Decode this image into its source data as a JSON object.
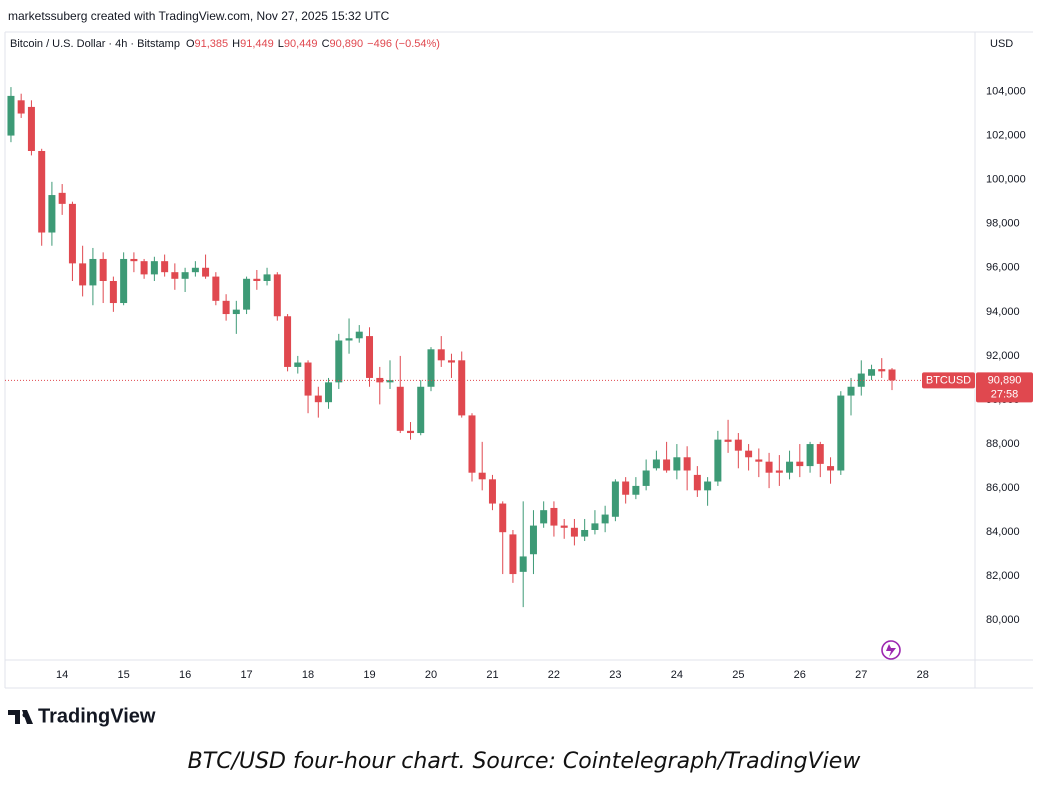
{
  "header": {
    "credit": "marketssuberg created with TradingView.com, Nov 27, 2025 15:32 UTC",
    "symbol": "Bitcoin / U.S. Dollar · 4h · Bitstamp",
    "ohlc": [
      {
        "key": "O",
        "value": "91,385"
      },
      {
        "key": "H",
        "value": "91,449"
      },
      {
        "key": "L",
        "value": "90,449"
      },
      {
        "key": "C",
        "value": "90,890"
      }
    ],
    "change": "−496 (−0.54%)"
  },
  "chart_data": {
    "type": "candlestick",
    "currency": "USD",
    "up_color": "#3d9a76",
    "down_color": "#e0484f",
    "x": [
      13.167,
      13.333,
      13.5,
      13.667,
      13.833,
      14,
      14.167,
      14.333,
      14.5,
      14.667,
      14.833,
      15,
      15.167,
      15.333,
      15.5,
      15.667,
      15.833,
      16,
      16.167,
      16.333,
      16.5,
      16.667,
      16.833,
      17,
      17.167,
      17.333,
      17.5,
      17.667,
      17.833,
      18,
      18.167,
      18.333,
      18.5,
      18.667,
      18.833,
      19,
      19.167,
      19.333,
      19.5,
      19.667,
      19.833,
      20,
      20.167,
      20.333,
      20.5,
      20.667,
      20.833,
      21,
      21.167,
      21.333,
      21.5,
      21.667,
      21.833,
      22,
      22.167,
      22.333,
      22.5,
      22.667,
      22.833,
      23,
      23.167,
      23.333,
      23.5,
      23.667,
      23.833,
      24,
      24.167,
      24.333,
      24.5,
      24.667,
      24.833,
      25,
      25.167,
      25.333,
      25.5,
      25.667,
      25.833,
      26,
      26.167,
      26.333,
      26.5,
      26.667,
      26.833,
      27,
      27.167,
      27.333,
      27.5
    ],
    "open": [
      102000,
      103600,
      103300,
      101300,
      97600,
      99400,
      98900,
      96200,
      95200,
      96400,
      95400,
      94400,
      96400,
      96300,
      95700,
      96300,
      95800,
      95500,
      95800,
      96000,
      95600,
      94500,
      93900,
      94100,
      95500,
      95400,
      95700,
      93800,
      91500,
      91700,
      90200,
      89900,
      90800,
      92700,
      92800,
      92900,
      91000,
      90800,
      90600,
      88600,
      88500,
      90600,
      92300,
      91800,
      91800,
      89300,
      86700,
      86400,
      85300,
      83900,
      82200,
      83000,
      84400,
      85100,
      84300,
      84200,
      83800,
      84100,
      84400,
      84700,
      86300,
      85700,
      86100,
      86900,
      87300,
      86800,
      87400,
      86600,
      85900,
      86300,
      88200,
      88200,
      87700,
      87300,
      87200,
      86800,
      86700,
      87200,
      87000,
      88000,
      87000,
      86800,
      90200,
      90600,
      91100,
      91400,
      91385
    ],
    "high": [
      104200,
      103900,
      103600,
      101400,
      99900,
      99800,
      99000,
      97000,
      96900,
      96700,
      95600,
      96700,
      96700,
      96400,
      96500,
      96600,
      96200,
      96000,
      96300,
      96600,
      95800,
      94800,
      94500,
      95600,
      95900,
      96000,
      95800,
      93900,
      92000,
      91800,
      90600,
      91000,
      93000,
      93700,
      93400,
      93300,
      91500,
      91800,
      92000,
      89000,
      90900,
      92400,
      92900,
      92100,
      92200,
      89400,
      88100,
      86600,
      85400,
      84100,
      85400,
      85000,
      85400,
      85400,
      84600,
      84600,
      84600,
      85000,
      85200,
      86400,
      86500,
      86500,
      87300,
      87700,
      88100,
      88000,
      87900,
      87000,
      86500,
      88600,
      89100,
      88500,
      88000,
      87800,
      87600,
      87500,
      87700,
      88000,
      88100,
      88100,
      87400,
      90400,
      91000,
      91800,
      91600,
      91900,
      91449
    ],
    "low": [
      101700,
      102800,
      101100,
      97000,
      97000,
      98400,
      95400,
      94700,
      94300,
      94400,
      94000,
      94300,
      95800,
      95500,
      95400,
      95600,
      95000,
      94900,
      95600,
      95500,
      94300,
      93600,
      93000,
      93900,
      95000,
      95200,
      93600,
      91300,
      91200,
      89400,
      89200,
      89600,
      90500,
      92100,
      92600,
      90600,
      89800,
      90500,
      88500,
      88200,
      88400,
      90400,
      91500,
      91000,
      89200,
      86300,
      85900,
      85000,
      82100,
      81700,
      80600,
      82100,
      84200,
      83800,
      83700,
      83400,
      83600,
      83900,
      84000,
      84500,
      85300,
      85500,
      85900,
      86800,
      86700,
      86400,
      85900,
      85600,
      85200,
      86100,
      87600,
      86900,
      86800,
      86500,
      86000,
      86100,
      86400,
      86500,
      86700,
      86500,
      86200,
      86600,
      89300,
      90200,
      90900,
      91000,
      90449
    ],
    "close": [
      103800,
      103000,
      101300,
      97600,
      99300,
      98900,
      96200,
      95200,
      96400,
      95400,
      94400,
      96400,
      96300,
      95700,
      96300,
      95800,
      95500,
      95800,
      96000,
      95600,
      94500,
      93900,
      94100,
      95500,
      95400,
      95700,
      93800,
      91500,
      91700,
      90200,
      89900,
      90800,
      92700,
      92800,
      93100,
      91000,
      90800,
      90900,
      88600,
      88500,
      90600,
      92300,
      91800,
      91700,
      89300,
      86700,
      86400,
      85300,
      84000,
      82100,
      82900,
      84300,
      85000,
      84300,
      84200,
      83800,
      84100,
      84400,
      84800,
      86300,
      85700,
      86100,
      86800,
      87300,
      86800,
      87400,
      86800,
      85900,
      86300,
      88200,
      88100,
      87700,
      87400,
      87200,
      86700,
      86700,
      87200,
      87000,
      88000,
      87100,
      86800,
      90200,
      90600,
      91200,
      91400,
      91300,
      90890
    ],
    "xlim": [
      13.07,
      28.85
    ],
    "xticks": [
      14,
      15,
      16,
      17,
      18,
      19,
      20,
      21,
      22,
      23,
      24,
      25,
      26,
      27,
      28
    ],
    "ylim": [
      78200,
      106700
    ],
    "yticks": [
      {
        "value": 80000,
        "label": "80,000"
      },
      {
        "value": 82000,
        "label": "82,000"
      },
      {
        "value": 84000,
        "label": "84,000"
      },
      {
        "value": 86000,
        "label": "86,000"
      },
      {
        "value": 88000,
        "label": "88,000"
      },
      {
        "value": 90000,
        "label": "90,000"
      },
      {
        "value": 92000,
        "label": "92,000"
      },
      {
        "value": 94000,
        "label": "94,000"
      },
      {
        "value": 96000,
        "label": "96,000"
      },
      {
        "value": 98000,
        "label": "98,000"
      },
      {
        "value": 100000,
        "label": "100,000"
      },
      {
        "value": 102000,
        "label": "102,000"
      },
      {
        "value": 104000,
        "label": "104,000"
      }
    ],
    "grid": false,
    "last_price": {
      "symbol": "BTCUSD",
      "label": "90,890",
      "countdown": "27:58"
    }
  },
  "footer": {
    "logo": "TradingView",
    "caption": "BTC/USD four-hour chart. Source: Cointelegraph/TradingView"
  }
}
